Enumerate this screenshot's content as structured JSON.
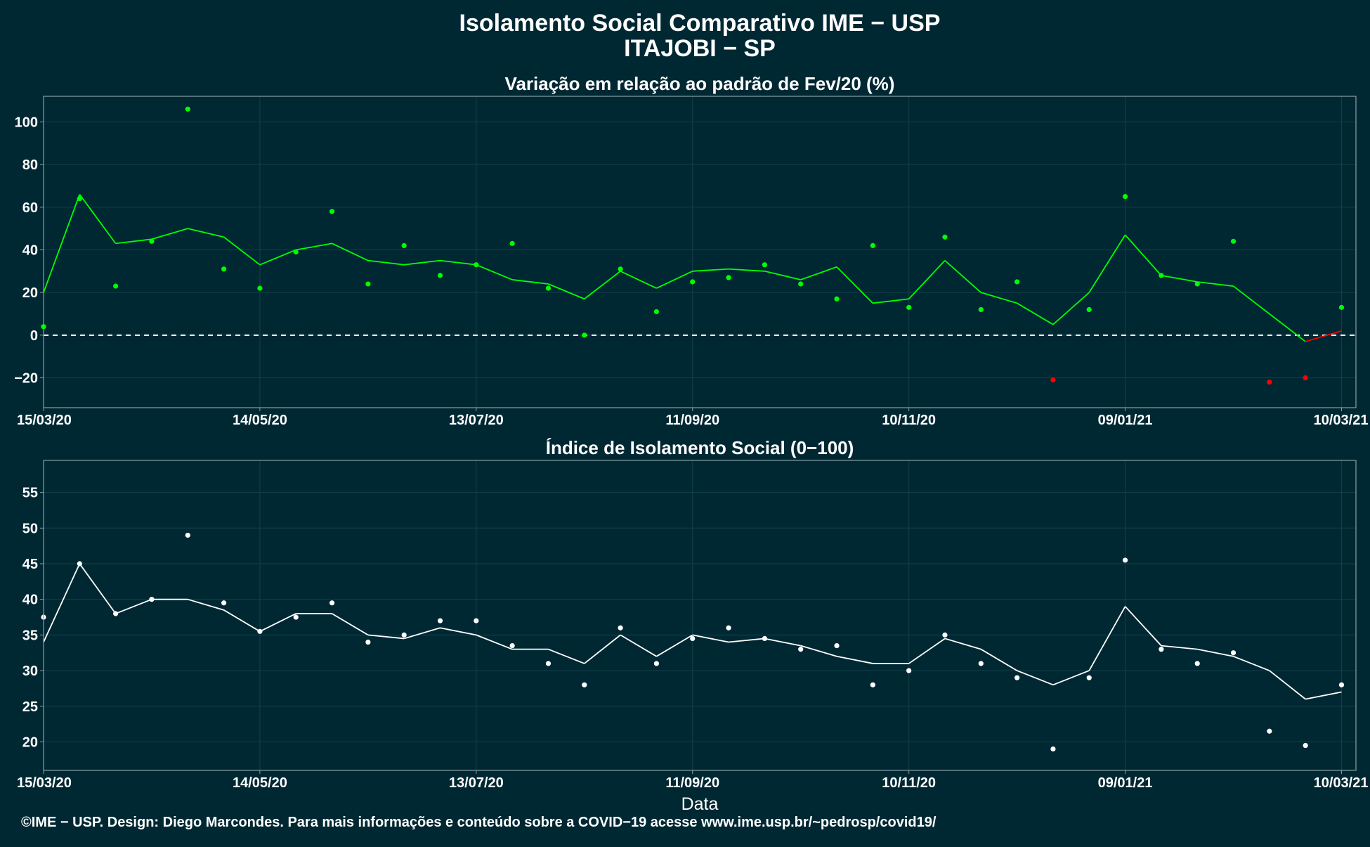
{
  "header": {
    "title": "Isolamento Social Comparativo IME − USP",
    "subtitle": "ITAJOBI − SP"
  },
  "footer": {
    "credit": "©IME − USP. Design: Diego Marcondes. Para mais informações e conteúdo sobre a COVID−19 acesse www.ime.usp.br/~pedrosp/covid19/"
  },
  "colors": {
    "background": "#002833",
    "positive_points": "#00ff00",
    "negative_points": "#ff0000",
    "index_points": "#ffffff",
    "grid": "#13404a",
    "frame": "#8a9ea3"
  },
  "chart_data": [
    {
      "type": "scatter",
      "title": "Variação em relação ao padrão de Fev/20 (%)",
      "xlabel": "",
      "ylabel": "",
      "x_range": [
        "15/03/20",
        "14/03/21"
      ],
      "ylim": [
        -34,
        112
      ],
      "yticks": [
        -20,
        0,
        20,
        40,
        60,
        80,
        100
      ],
      "xticks": [
        "15/03/20",
        "14/05/20",
        "13/07/20",
        "11/09/20",
        "10/11/20",
        "09/01/21",
        "10/03/21"
      ],
      "reference_line": 0,
      "grid": true,
      "series": [
        {
          "kind": "points",
          "color_rule": "green when value ≥ 0, red when value < 0",
          "x": [
            "15/03/20",
            "25/03/20",
            "04/04/20",
            "14/04/20",
            "24/04/20",
            "04/05/20",
            "14/05/20",
            "24/05/20",
            "03/06/20",
            "13/06/20",
            "23/06/20",
            "03/07/20",
            "13/07/20",
            "23/07/20",
            "02/08/20",
            "12/08/20",
            "22/08/20",
            "01/09/20",
            "11/09/20",
            "21/09/20",
            "01/10/20",
            "11/10/20",
            "21/10/20",
            "31/10/20",
            "10/11/20",
            "20/11/20",
            "30/11/20",
            "10/12/20",
            "20/12/20",
            "30/12/20",
            "09/01/21",
            "19/01/21",
            "29/01/21",
            "08/02/21",
            "18/02/21",
            "28/02/21",
            "10/03/21"
          ],
          "y": [
            4,
            64,
            23,
            44,
            106,
            31,
            22,
            39,
            58,
            24,
            42,
            28,
            33,
            43,
            22,
            0,
            31,
            11,
            25,
            27,
            33,
            24,
            17,
            42,
            13,
            46,
            12,
            25,
            -21,
            12,
            65,
            28,
            24,
            44,
            -22,
            -20,
            13
          ]
        },
        {
          "kind": "moving_average",
          "x": [
            "15/03/20",
            "25/03/20",
            "04/04/20",
            "14/04/20",
            "24/04/20",
            "04/05/20",
            "14/05/20",
            "24/05/20",
            "03/06/20",
            "13/06/20",
            "23/06/20",
            "03/07/20",
            "13/07/20",
            "23/07/20",
            "02/08/20",
            "12/08/20",
            "22/08/20",
            "01/09/20",
            "11/09/20",
            "21/09/20",
            "01/10/20",
            "11/10/20",
            "21/10/20",
            "31/10/20",
            "10/11/20",
            "20/11/20",
            "30/11/20",
            "10/12/20",
            "20/12/20",
            "30/12/20",
            "09/01/21",
            "19/01/21",
            "29/01/21",
            "08/02/21",
            "18/02/21",
            "28/02/21",
            "10/03/21"
          ],
          "y": [
            20,
            66,
            43,
            45,
            50,
            46,
            33,
            40,
            43,
            35,
            33,
            35,
            33,
            26,
            24,
            17,
            30,
            22,
            30,
            31,
            30,
            26,
            32,
            15,
            17,
            35,
            20,
            15,
            5,
            20,
            47,
            28,
            25,
            23,
            10,
            -3,
            2
          ]
        }
      ]
    },
    {
      "type": "scatter",
      "title": "Índice de Isolamento Social (0−100)",
      "xlabel": "Data",
      "ylabel": "",
      "x_range": [
        "15/03/20",
        "14/03/21"
      ],
      "ylim": [
        16,
        59.5
      ],
      "yticks": [
        20,
        25,
        30,
        35,
        40,
        45,
        50,
        55
      ],
      "xticks": [
        "15/03/20",
        "14/05/20",
        "13/07/20",
        "11/09/20",
        "10/11/20",
        "09/01/21",
        "10/03/21"
      ],
      "grid": true,
      "series": [
        {
          "kind": "points",
          "x": [
            "15/03/20",
            "25/03/20",
            "04/04/20",
            "14/04/20",
            "24/04/20",
            "04/05/20",
            "14/05/20",
            "24/05/20",
            "03/06/20",
            "13/06/20",
            "23/06/20",
            "03/07/20",
            "13/07/20",
            "23/07/20",
            "02/08/20",
            "12/08/20",
            "22/08/20",
            "01/09/20",
            "11/09/20",
            "21/09/20",
            "01/10/20",
            "11/10/20",
            "21/10/20",
            "31/10/20",
            "10/11/20",
            "20/11/20",
            "30/11/20",
            "10/12/20",
            "20/12/20",
            "30/12/20",
            "09/01/21",
            "19/01/21",
            "29/01/21",
            "08/02/21",
            "18/02/21",
            "28/02/21",
            "10/03/21"
          ],
          "y": [
            37.5,
            45,
            38,
            40,
            49,
            39.5,
            35.5,
            37.5,
            39.5,
            34,
            35,
            37,
            37,
            33.5,
            31,
            28,
            36,
            31,
            34.5,
            36,
            34.5,
            33,
            33.5,
            28,
            30,
            35,
            31,
            29,
            19,
            29,
            45.5,
            33,
            31,
            32.5,
            21.5,
            19.5,
            28
          ]
        },
        {
          "kind": "moving_average",
          "x": [
            "15/03/20",
            "25/03/20",
            "04/04/20",
            "14/04/20",
            "24/04/20",
            "04/05/20",
            "14/05/20",
            "24/05/20",
            "03/06/20",
            "13/06/20",
            "23/06/20",
            "03/07/20",
            "13/07/20",
            "23/07/20",
            "02/08/20",
            "12/08/20",
            "22/08/20",
            "01/09/20",
            "11/09/20",
            "21/09/20",
            "01/10/20",
            "11/10/20",
            "21/10/20",
            "31/10/20",
            "10/11/20",
            "20/11/20",
            "30/11/20",
            "10/12/20",
            "20/12/20",
            "30/12/20",
            "09/01/21",
            "19/01/21",
            "29/01/21",
            "08/02/21",
            "18/02/21",
            "28/02/21",
            "10/03/21"
          ],
          "y": [
            34,
            45,
            38,
            40,
            40,
            38.5,
            35.5,
            38,
            38,
            35,
            34.5,
            36,
            35,
            33,
            33,
            31,
            35,
            32,
            35,
            34,
            34.5,
            33.5,
            32,
            31,
            31,
            34.5,
            33,
            30,
            28,
            30,
            39,
            33.5,
            33,
            32,
            30,
            26,
            27
          ]
        }
      ]
    }
  ]
}
